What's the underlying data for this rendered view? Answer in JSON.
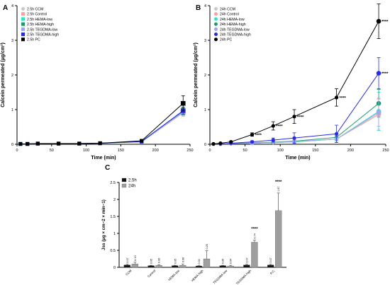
{
  "panel_labels": {
    "a": "A",
    "b": "B",
    "c": "C"
  },
  "chart_data": [
    {
      "type": "line",
      "panel": "A",
      "xlabel": "Time (min)",
      "ylabel": "Calcein permeated (µg/cm²)",
      "xlim": [
        0,
        250
      ],
      "ylim": [
        0,
        4
      ],
      "xticks": [
        0,
        50,
        100,
        150,
        200,
        250
      ],
      "yticks": [
        0,
        1,
        2,
        3,
        4
      ],
      "legend_position": "top-left",
      "x": [
        5,
        15,
        30,
        60,
        90,
        120,
        180,
        240
      ],
      "series": [
        {
          "name": "2.5h CCM",
          "color": "#c8c8c8",
          "marker": "circle",
          "values": [
            0.01,
            0.01,
            0.02,
            0.02,
            0.02,
            0.03,
            0.07,
            0.9
          ],
          "err": [
            0,
            0,
            0,
            0,
            0,
            0,
            0.02,
            0.1
          ]
        },
        {
          "name": "2.5h Control",
          "color": "#f4a3a3",
          "marker": "square",
          "values": [
            0.01,
            0.01,
            0.02,
            0.02,
            0.02,
            0.03,
            0.07,
            0.92
          ],
          "err": [
            0,
            0,
            0,
            0,
            0,
            0,
            0.02,
            0.1
          ]
        },
        {
          "name": "2.5h HEMA-low",
          "color": "#2ee5c4",
          "marker": "square",
          "values": [
            0.01,
            0.01,
            0.02,
            0.02,
            0.02,
            0.03,
            0.07,
            0.94
          ],
          "err": [
            0,
            0,
            0,
            0,
            0,
            0,
            0.02,
            0.1
          ]
        },
        {
          "name": "2.5h HEMA-high",
          "color": "#1f9a6a",
          "marker": "square",
          "values": [
            0.01,
            0.01,
            0.02,
            0.02,
            0.02,
            0.03,
            0.08,
            0.96
          ],
          "err": [
            0,
            0,
            0,
            0,
            0,
            0,
            0.02,
            0.1
          ]
        },
        {
          "name": "2.5h TEGDMA-low",
          "color": "#9aa8ee",
          "marker": "square",
          "values": [
            0.01,
            0.01,
            0.02,
            0.02,
            0.02,
            0.03,
            0.08,
            0.93
          ],
          "err": [
            0,
            0,
            0,
            0,
            0,
            0,
            0.02,
            0.1
          ]
        },
        {
          "name": "2.5h TEGDMA-high",
          "color": "#2a2ae0",
          "marker": "square",
          "values": [
            0.01,
            0.01,
            0.02,
            0.02,
            0.02,
            0.03,
            0.08,
            0.97
          ],
          "err": [
            0,
            0,
            0,
            0,
            0,
            0,
            0.02,
            0.1
          ]
        },
        {
          "name": "2.5h PC",
          "color": "#000000",
          "marker": "square",
          "values": [
            0.01,
            0.01,
            0.02,
            0.02,
            0.02,
            0.03,
            0.1,
            1.18
          ],
          "err": [
            0,
            0,
            0,
            0,
            0,
            0,
            0.03,
            0.22
          ]
        }
      ]
    },
    {
      "type": "line",
      "panel": "B",
      "xlabel": "Time (min)",
      "ylabel": "Calcein permeated (µg/cm²)",
      "xlim": [
        0,
        250
      ],
      "ylim": [
        0,
        4
      ],
      "xticks": [
        0,
        50,
        100,
        150,
        200,
        250
      ],
      "yticks": [
        0,
        1,
        2,
        3,
        4
      ],
      "legend_position": "top-left",
      "x": [
        5,
        15,
        30,
        60,
        90,
        120,
        180,
        240
      ],
      "series": [
        {
          "name": "24h CCM",
          "color": "#c8c8c8",
          "marker": "circle",
          "values": [
            0.01,
            0.01,
            0.02,
            0.03,
            0.05,
            0.07,
            0.15,
            0.85
          ],
          "err": [
            0,
            0,
            0,
            0.02,
            0.03,
            0.04,
            0.1,
            0.45
          ]
        },
        {
          "name": "24h Control",
          "color": "#f4a3a3",
          "marker": "circle",
          "values": [
            0.01,
            0.01,
            0.02,
            0.03,
            0.05,
            0.07,
            0.15,
            0.88
          ],
          "err": [
            0,
            0,
            0,
            0.02,
            0.03,
            0.04,
            0.1,
            0.45
          ]
        },
        {
          "name": "24h HEMA-low",
          "color": "#2ee5c4",
          "marker": "circle",
          "values": [
            0.01,
            0.01,
            0.02,
            0.03,
            0.05,
            0.07,
            0.15,
            0.95
          ],
          "err": [
            0,
            0,
            0,
            0.02,
            0.03,
            0.04,
            0.1,
            0.55
          ]
        },
        {
          "name": "24h HEMA-high",
          "color": "#1f9a6a",
          "marker": "circle",
          "values": [
            0.01,
            0.01,
            0.02,
            0.04,
            0.06,
            0.09,
            0.2,
            1.18
          ],
          "err": [
            0,
            0,
            0,
            0.02,
            0.03,
            0.04,
            0.1,
            0.4
          ]
        },
        {
          "name": "24h TEGDMA-low",
          "color": "#9aa8ee",
          "marker": "circle",
          "values": [
            0.01,
            0.01,
            0.02,
            0.03,
            0.05,
            0.08,
            0.15,
            0.92
          ],
          "err": [
            0,
            0,
            0,
            0.02,
            0.03,
            0.04,
            0.1,
            0.4
          ]
        },
        {
          "name": "24h TEGDMA-high",
          "color": "#2a2ae0",
          "marker": "circle",
          "values": [
            0.01,
            0.01,
            0.03,
            0.07,
            0.12,
            0.18,
            0.3,
            2.05
          ],
          "err": [
            0,
            0,
            0.01,
            0.03,
            0.06,
            0.15,
            0.25,
            0.45
          ]
        },
        {
          "name": "24h PC",
          "color": "#000000",
          "marker": "circle",
          "values": [
            0.01,
            0.03,
            0.07,
            0.28,
            0.53,
            0.8,
            1.35,
            3.55
          ],
          "err": [
            0,
            0,
            0.02,
            0.05,
            0.12,
            0.2,
            0.25,
            0.5
          ]
        }
      ],
      "annotations": [
        {
          "text": "****",
          "x": 60,
          "y": 0.28
        },
        {
          "text": "****",
          "x": 90,
          "y": 0.53
        },
        {
          "text": "****",
          "x": 120,
          "y": 0.8
        },
        {
          "text": "****",
          "x": 180,
          "y": 1.35
        },
        {
          "text": "****",
          "x": 240,
          "y": 3.55
        },
        {
          "text": "****",
          "x": 240,
          "y": 2.05
        }
      ]
    },
    {
      "type": "bar",
      "panel": "C",
      "ylabel": "Jss (µg × cm−2 × min−1)",
      "ylim": [
        0,
        2.5
      ],
      "yticks": [
        0,
        0.5,
        1,
        1.5,
        2,
        2.5
      ],
      "ytick_labels": [
        "0",
        "0.5",
        "1",
        "1.5",
        "2",
        "2.5"
      ],
      "legend_position": "top-left",
      "categories": [
        "CCM",
        "Control",
        "HEMA-low",
        "HEMA-high",
        "TEGDMA-low",
        "TEGDMA-high",
        "P.C."
      ],
      "series": [
        {
          "name": "2.5h",
          "color": "#111111",
          "values": [
            0.07,
            0.05,
            0.05,
            0.04,
            0.05,
            0.07,
            0.07
          ],
          "err": [
            0.02,
            0.01,
            0.01,
            0.01,
            0.01,
            0.02,
            0.02
          ],
          "labels": [
            "0.07",
            "0.05",
            "0.05",
            "0.04",
            "0.05",
            "0.07",
            "0.07"
          ]
        },
        {
          "name": "24h",
          "color": "#9e9e9e",
          "values": [
            0.1,
            0.06,
            0.06,
            0.25,
            0.04,
            0.74,
            1.67
          ],
          "err": [
            0.05,
            0.02,
            0.04,
            0.24,
            0.02,
            0.06,
            0.52
          ],
          "labels": [
            "0.10",
            "0.06",
            "0.06",
            "0.25",
            "0.04",
            "0.74",
            "1.67"
          ]
        }
      ],
      "annotations": [
        {
          "text": "****",
          "category": "TEGDMA-high"
        },
        {
          "text": "****",
          "category": "P.C."
        }
      ]
    }
  ]
}
